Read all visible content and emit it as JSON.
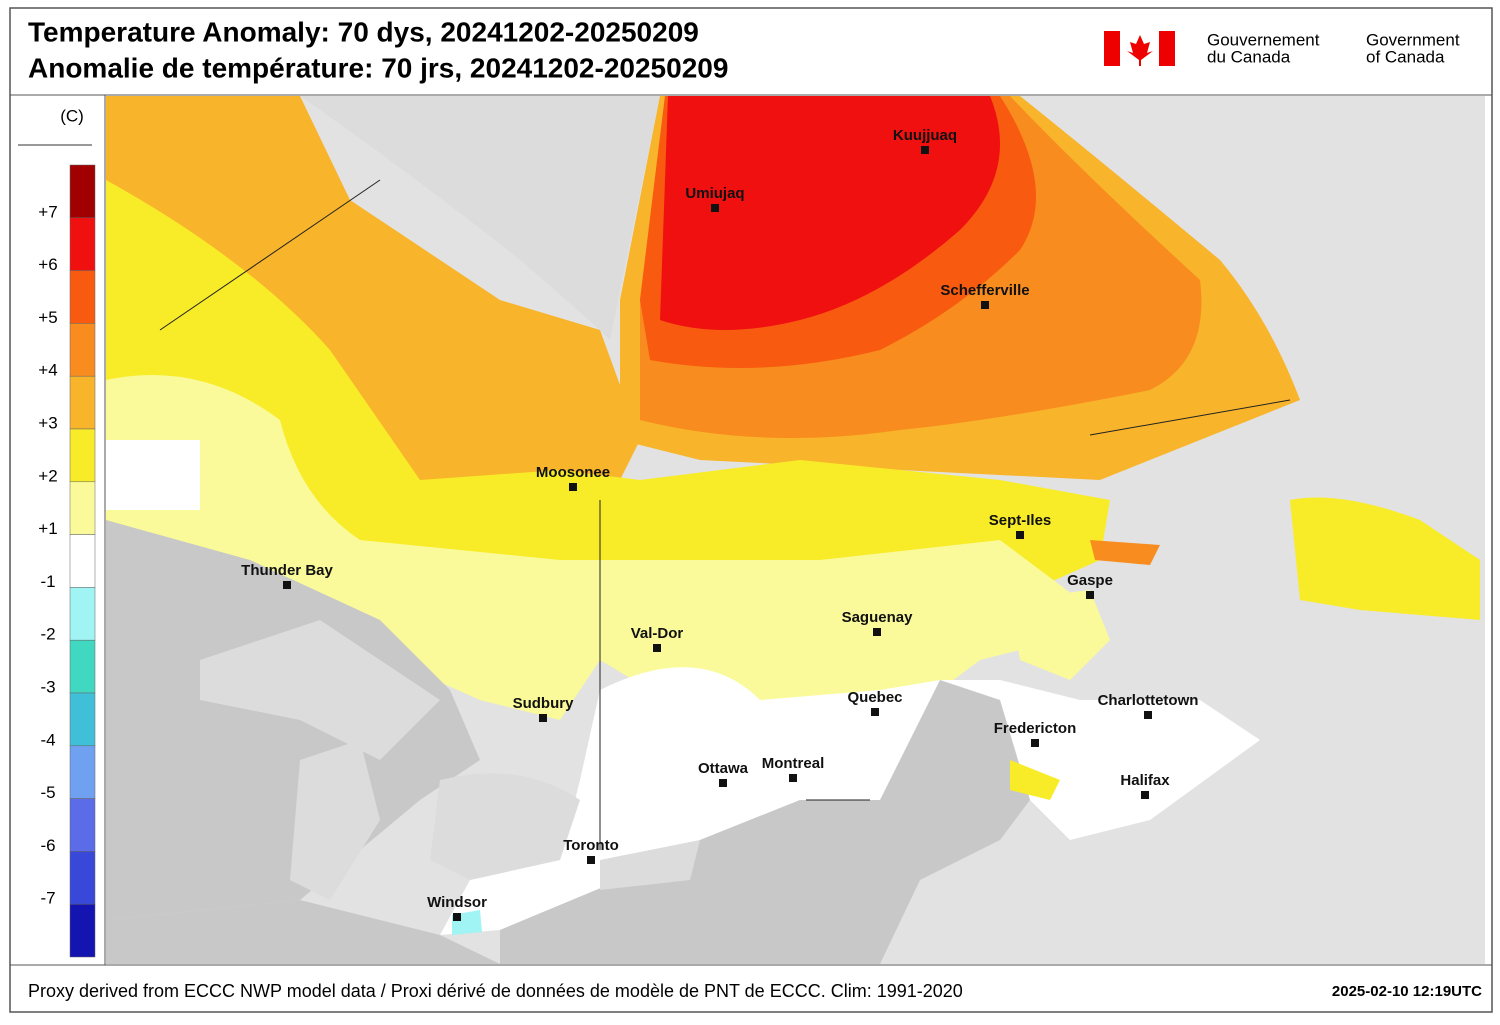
{
  "header": {
    "title_en": "Temperature Anomaly: 70 dys, 20241202-20250209",
    "title_fr": "Anomalie de température: 70 jrs, 20241202-20250209",
    "gov_fr": [
      "Gouvernement",
      "du Canada"
    ],
    "gov_en": [
      "Government",
      "of Canada"
    ]
  },
  "legend": {
    "unit": "(C)",
    "labels": [
      "+7",
      "+6",
      "+5",
      "+4",
      "+3",
      "+2",
      "+1",
      "-1",
      "-2",
      "-3",
      "-4",
      "-5",
      "-6",
      "-7"
    ],
    "colors": [
      "#a00000",
      "#f01010",
      "#f85a10",
      "#f88c1e",
      "#f8b42a",
      "#f8ec28",
      "#fafa9a",
      "#ffffff",
      "#a0f4f4",
      "#40d8c0",
      "#40c0d8",
      "#70a0f0",
      "#5c6ce8",
      "#3848d8",
      "#1414b0"
    ]
  },
  "map": {
    "cities": [
      "Kuujjuaq",
      "Umiujaq",
      "Schefferville",
      "Moosonee",
      "Sept-Iles",
      "Thunder Bay",
      "Gaspe",
      "Saguenay",
      "Val-Dor",
      "Sudbury",
      "Quebec",
      "Charlottetown",
      "Fredericton",
      "Ottawa",
      "Montreal",
      "Halifax",
      "Toronto",
      "Windsor"
    ]
  },
  "footer": {
    "source": "Proxy derived from ECCC NWP model data / Proxi dérivé de données de modèle de PNT de ECCC. Clim: 1991-2020",
    "timestamp": "2025-02-10 12:19UTC"
  }
}
